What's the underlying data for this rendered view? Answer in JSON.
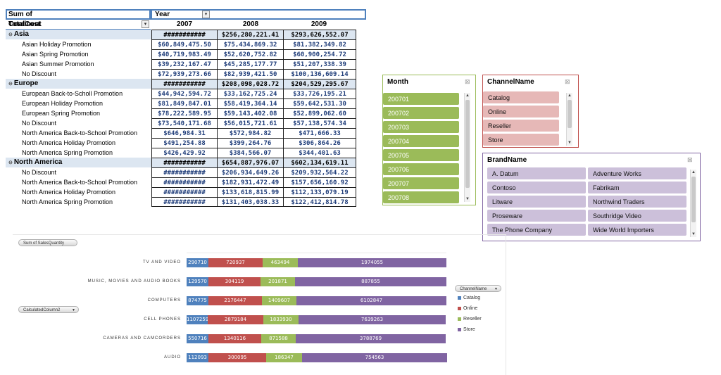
{
  "pivot": {
    "value_header": "Sum of TotalCost",
    "col_field": "Year",
    "row_field": "Continent",
    "years": [
      "2007",
      "2008",
      "2009"
    ],
    "rows": [
      {
        "type": "group",
        "label": "Asia",
        "values": [
          "###########",
          "$256,280,221.41",
          "$293,626,552.07"
        ]
      },
      {
        "type": "sub",
        "label": "Asian Holiday Promotion",
        "values": [
          "$60,849,475.50",
          "$75,434,869.32",
          "$81,382,349.82"
        ]
      },
      {
        "type": "sub",
        "label": "Asian Spring Promotion",
        "values": [
          "$40,719,983.49",
          "$52,620,752.82",
          "$60,900,254.72"
        ]
      },
      {
        "type": "sub",
        "label": "Asian Summer Promotion",
        "values": [
          "$39,232,167.47",
          "$45,285,177.77",
          "$51,207,338.39"
        ]
      },
      {
        "type": "sub",
        "label": "No Discount",
        "values": [
          "$72,939,273.66",
          "$82,939,421.50",
          "$100,136,609.14"
        ]
      },
      {
        "type": "group",
        "label": "Europe",
        "values": [
          "###########",
          "$208,098,028.72",
          "$204,529,295.67"
        ]
      },
      {
        "type": "sub",
        "label": "European Back-to-Scholl Promotion",
        "values": [
          "$44,942,594.72",
          "$33,162,725.24",
          "$33,726,195.21"
        ]
      },
      {
        "type": "sub",
        "label": "European Holiday Promotion",
        "values": [
          "$81,849,847.01",
          "$58,419,364.14",
          "$59,642,531.30"
        ]
      },
      {
        "type": "sub",
        "label": "European Spring Promotion",
        "values": [
          "$78,222,589.95",
          "$59,143,402.08",
          "$52,899,062.60"
        ]
      },
      {
        "type": "sub",
        "label": "No Discount",
        "values": [
          "$73,540,171.68",
          "$56,015,721.61",
          "$57,138,574.34"
        ]
      },
      {
        "type": "sub",
        "label": "North America Back-to-School Promotion",
        "values": [
          "$646,984.31",
          "$572,984.82",
          "$471,666.33"
        ]
      },
      {
        "type": "sub",
        "label": "North America Holiday Promotion",
        "values": [
          "$491,254.88",
          "$399,264.76",
          "$306,864.26"
        ]
      },
      {
        "type": "sub",
        "label": "North America Spring Promotion",
        "values": [
          "$426,429.92",
          "$384,566.07",
          "$344,401.63"
        ]
      },
      {
        "type": "group",
        "label": "North America",
        "values": [
          "###########",
          "$654,887,976.07",
          "$602,134,619.11"
        ]
      },
      {
        "type": "sub",
        "label": "No Discount",
        "values": [
          "###########",
          "$206,934,649.26",
          "$209,932,564.22"
        ]
      },
      {
        "type": "sub",
        "label": "North America Back-to-School Promotion",
        "values": [
          "###########",
          "$182,931,472.49",
          "$157,656,160.92"
        ]
      },
      {
        "type": "sub",
        "label": "North America Holiday Promotion",
        "values": [
          "###########",
          "$133,618,815.99",
          "$112,133,079.19"
        ]
      },
      {
        "type": "sub",
        "label": "North America Spring Promotion",
        "values": [
          "###########",
          "$131,403,038.33",
          "$122,412,814.78"
        ]
      }
    ]
  },
  "slicers": {
    "month": {
      "title": "Month",
      "items": [
        "200701",
        "200702",
        "200703",
        "200704",
        "200705",
        "200706",
        "200707",
        "200708"
      ],
      "color": "#9bbb59",
      "border": "#9bbb59"
    },
    "channel": {
      "title": "ChannelName",
      "items": [
        "Catalog",
        "Online",
        "Reseller",
        "Store"
      ],
      "color": "#e6b8b7",
      "border": "#c0504d"
    },
    "brand": {
      "title": "BrandName",
      "items": [
        "A. Datum",
        "Adventure Works",
        "Contoso",
        "Fabrikam",
        "Litware",
        "Northwind Traders",
        "Proseware",
        "Southridge Video",
        "The Phone Company",
        "Wide World Importers"
      ],
      "color": "#ccc0da",
      "border": "#8064a2"
    }
  },
  "chart": {
    "value_button": "Sum of SalesQuantity",
    "axis_button": "CalculatedColumn2",
    "legend_button": "ChannelName",
    "colors": {
      "Catalog": "#4f81bd",
      "Online": "#c0504d",
      "Reseller": "#9bbb59",
      "Store": "#8064a2"
    }
  },
  "chart_data": {
    "type": "bar",
    "stacked": true,
    "orientation": "horizontal",
    "percent_stacked": true,
    "categories": [
      "TV AND VIDEO",
      "MUSIC, MOVIES AND AUDIO BOOKS",
      "COMPUTERS",
      "CELL PHONES",
      "CAMERAS AND CAMCORDERS",
      "AUDIO"
    ],
    "series": [
      {
        "name": "Catalog",
        "values": [
          290710,
          129570,
          874775,
          1107259,
          550716,
          112093
        ]
      },
      {
        "name": "Online",
        "values": [
          720937,
          304119,
          2176447,
          2879184,
          1340116,
          300095
        ]
      },
      {
        "name": "Reseller",
        "values": [
          463494,
          201871,
          1409607,
          1833930,
          871588,
          186347
        ]
      },
      {
        "name": "Store",
        "values": [
          1974055,
          887855,
          6102847,
          7639263,
          3788769,
          754563
        ]
      }
    ],
    "legend": "right"
  }
}
